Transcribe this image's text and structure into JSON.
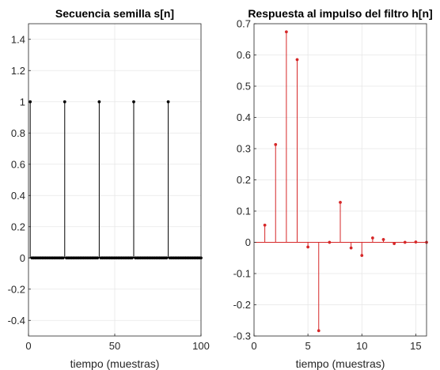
{
  "chart_data": [
    {
      "type": "stem",
      "title": "Secuencia semilla s[n]",
      "xlabel": "tiempo (muestras)",
      "ylabel": "",
      "xlim": [
        0,
        100
      ],
      "ylim": [
        -0.5,
        1.5
      ],
      "xticks": [
        0,
        50,
        100
      ],
      "yticks": [
        -0.4,
        -0.2,
        0,
        0.2,
        0.4,
        0.6,
        0.8,
        1,
        1.2,
        1.4
      ],
      "xtick_labels": [
        "0",
        "50",
        "100"
      ],
      "ytick_labels": [
        "-0.4",
        "-0.2",
        "0",
        "0.2",
        "0.4",
        "0.6",
        "0.8",
        "1",
        "1.2",
        "1.4"
      ],
      "grid": true,
      "color": "#000000",
      "n_samples": 100,
      "x_start": 1,
      "impulses": [
        {
          "x": 1,
          "y": 1
        },
        {
          "x": 21,
          "y": 1
        },
        {
          "x": 41,
          "y": 1
        },
        {
          "x": 61,
          "y": 1
        },
        {
          "x": 81,
          "y": 1
        }
      ],
      "other_values": 0
    },
    {
      "type": "stem",
      "title": "Respuesta al impulso del filtro h[n]",
      "xlabel": "tiempo (muestras)",
      "ylabel": "",
      "xlim": [
        0,
        16
      ],
      "ylim": [
        -0.3,
        0.7
      ],
      "xticks": [
        0,
        5,
        10,
        15
      ],
      "yticks": [
        -0.3,
        -0.2,
        -0.1,
        0,
        0.1,
        0.2,
        0.3,
        0.4,
        0.5,
        0.6,
        0.7
      ],
      "xtick_labels": [
        "0",
        "5",
        "10",
        "15"
      ],
      "ytick_labels": [
        "-0.3",
        "-0.2",
        "-0.1",
        "0",
        "0.1",
        "0.2",
        "0.3",
        "0.4",
        "0.5",
        "0.6",
        "0.7"
      ],
      "grid": true,
      "color": "#d62728",
      "x": [
        1,
        2,
        3,
        4,
        5,
        6,
        7,
        8,
        9,
        10,
        11,
        12,
        13,
        14,
        15,
        16
      ],
      "y": [
        0.055,
        0.313,
        0.674,
        0.585,
        -0.015,
        -0.283,
        0.0,
        0.128,
        -0.018,
        -0.042,
        0.014,
        0.009,
        -0.004,
        0.0,
        0.001,
        0.0
      ]
    }
  ]
}
